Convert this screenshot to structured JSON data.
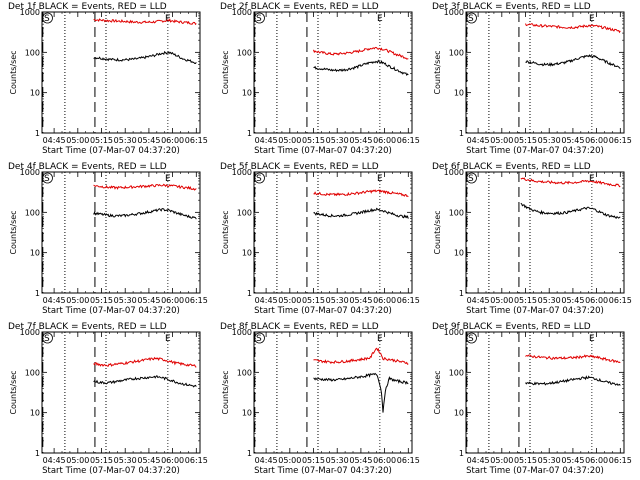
{
  "figure": {
    "title": ""
  },
  "chart_data": [
    {
      "type": "line",
      "title": "Det 1f BLACK = Events, RED = LLD",
      "xlabel": "Start Time (07-Mar-07 04:37:20)",
      "ylabel": "Counts/sec",
      "yscale": "log",
      "ylim": [
        1,
        1000
      ],
      "yticks": [
        "1",
        "10",
        "100",
        "1000"
      ],
      "xticks": [
        "04:45",
        "05:00",
        "05:15",
        "05:30",
        "05:45",
        "06:00",
        "06:15"
      ],
      "markers": [
        "S",
        "E"
      ],
      "series": [
        {
          "name": "LLD",
          "color": "#e00000",
          "x_start": "05:10",
          "x_end": "06:15",
          "values": [
            650,
            630,
            610,
            600,
            590,
            580,
            560,
            560,
            560,
            570,
            600,
            620,
            580,
            560,
            540,
            520
          ]
        },
        {
          "name": "Events",
          "color": "#000000",
          "x_start": "05:10",
          "x_end": "06:15",
          "values": [
            75,
            72,
            68,
            66,
            65,
            66,
            68,
            72,
            78,
            85,
            95,
            100,
            85,
            70,
            62,
            55
          ]
        }
      ]
    },
    {
      "type": "line",
      "title": "Det 2f BLACK = Events, RED = LLD",
      "xlabel": "Start Time (07-Mar-07 04:37:20)",
      "ylabel": "Counts/sec",
      "yscale": "log",
      "ylim": [
        1,
        1000
      ],
      "yticks": [
        "1",
        "10",
        "100",
        "1000"
      ],
      "xticks": [
        "04:45",
        "05:00",
        "05:15",
        "05:30",
        "05:45",
        "06:00",
        "06:15"
      ],
      "markers": [
        "S",
        "E"
      ],
      "series": [
        {
          "name": "LLD",
          "color": "#e00000",
          "x_start": "05:15",
          "x_end": "06:15",
          "values": [
            110,
            100,
            95,
            90,
            92,
            95,
            100,
            105,
            115,
            125,
            130,
            120,
            105,
            90,
            80,
            70
          ]
        },
        {
          "name": "Events",
          "color": "#000000",
          "x_start": "05:15",
          "x_end": "06:15",
          "values": [
            42,
            40,
            38,
            36,
            36,
            37,
            40,
            44,
            50,
            56,
            60,
            55,
            45,
            38,
            32,
            27
          ]
        }
      ]
    },
    {
      "type": "line",
      "title": "Det 3f BLACK = Events, RED = LLD",
      "xlabel": "Start Time (07-Mar-07 04:37:20)",
      "ylabel": "Counts/sec",
      "yscale": "log",
      "ylim": [
        1,
        1000
      ],
      "yticks": [
        "1",
        "10",
        "100",
        "1000"
      ],
      "xticks": [
        "04:45",
        "05:00",
        "05:15",
        "05:30",
        "05:45",
        "06:00",
        "06:15"
      ],
      "markers": [
        "S",
        "E"
      ],
      "series": [
        {
          "name": "LLD",
          "color": "#e00000",
          "x_start": "05:15",
          "x_end": "06:15",
          "values": [
            500,
            480,
            460,
            450,
            440,
            430,
            420,
            415,
            420,
            440,
            460,
            450,
            420,
            390,
            360,
            330
          ]
        },
        {
          "name": "Events",
          "color": "#000000",
          "x_start": "05:15",
          "x_end": "06:15",
          "values": [
            60,
            56,
            52,
            50,
            50,
            52,
            55,
            60,
            68,
            76,
            82,
            78,
            66,
            56,
            48,
            42
          ]
        }
      ]
    },
    {
      "type": "line",
      "title": "Det 4f BLACK = Events, RED = LLD",
      "xlabel": "Start Time (07-Mar-07 04:37:20)",
      "ylabel": "Counts/sec",
      "yscale": "log",
      "ylim": [
        1,
        1000
      ],
      "yticks": [
        "1",
        "10",
        "100",
        "1000"
      ],
      "xticks": [
        "04:45",
        "05:00",
        "05:15",
        "05:30",
        "05:45",
        "06:00",
        "06:15"
      ],
      "markers": [
        "S",
        "E"
      ],
      "series": [
        {
          "name": "LLD",
          "color": "#e00000",
          "x_start": "05:10",
          "x_end": "06:15",
          "values": [
            460,
            440,
            420,
            410,
            410,
            420,
            430,
            440,
            450,
            460,
            470,
            460,
            440,
            420,
            400,
            380
          ]
        },
        {
          "name": "Events",
          "color": "#000000",
          "x_start": "05:10",
          "x_end": "06:15",
          "values": [
            95,
            90,
            85,
            82,
            82,
            85,
            90,
            95,
            102,
            110,
            118,
            112,
            98,
            86,
            78,
            72
          ]
        }
      ]
    },
    {
      "type": "line",
      "title": "Det 5f BLACK = Events, RED = LLD",
      "xlabel": "Start Time (07-Mar-07 04:37:20)",
      "ylabel": "Counts/sec",
      "yscale": "log",
      "ylim": [
        1,
        1000
      ],
      "yticks": [
        "1",
        "10",
        "100",
        "1000"
      ],
      "xticks": [
        "04:45",
        "05:00",
        "05:15",
        "05:30",
        "05:45",
        "06:00",
        "06:15"
      ],
      "markers": [
        "S",
        "E"
      ],
      "series": [
        {
          "name": "LLD",
          "color": "#e00000",
          "x_start": "05:15",
          "x_end": "06:15",
          "values": [
            300,
            290,
            280,
            275,
            275,
            280,
            290,
            300,
            315,
            330,
            340,
            330,
            310,
            290,
            275,
            260
          ]
        },
        {
          "name": "Events",
          "color": "#000000",
          "x_start": "05:15",
          "x_end": "06:15",
          "values": [
            95,
            90,
            85,
            82,
            82,
            85,
            90,
            96,
            104,
            112,
            118,
            110,
            96,
            86,
            80,
            75
          ]
        }
      ]
    },
    {
      "type": "line",
      "title": "Det 6f BLACK = Events, RED = LLD",
      "xlabel": "Start Time (07-Mar-07 04:37:20)",
      "ylabel": "Counts/sec",
      "yscale": "log",
      "ylim": [
        1,
        1000
      ],
      "yticks": [
        "1",
        "10",
        "100",
        "1000"
      ],
      "xticks": [
        "04:45",
        "05:00",
        "05:15",
        "05:30",
        "05:45",
        "06:00",
        "06:15"
      ],
      "markers": [
        "S",
        "E"
      ],
      "series": [
        {
          "name": "LLD",
          "color": "#e00000",
          "x_start": "05:12",
          "x_end": "06:15",
          "values": [
            700,
            650,
            600,
            580,
            560,
            550,
            540,
            540,
            550,
            570,
            600,
            580,
            540,
            510,
            480,
            460
          ]
        },
        {
          "name": "Events",
          "color": "#000000",
          "x_start": "05:12",
          "x_end": "06:15",
          "values": [
            165,
            130,
            110,
            100,
            96,
            95,
            96,
            100,
            108,
            118,
            128,
            120,
            100,
            85,
            78,
            72
          ]
        }
      ]
    },
    {
      "type": "line",
      "title": "Det 7f BLACK = Events, RED = LLD",
      "xlabel": "Start Time (07-Mar-07 04:37:20)",
      "ylabel": "Counts/sec",
      "yscale": "log",
      "ylim": [
        1,
        1000
      ],
      "yticks": [
        "1",
        "10",
        "100",
        "1000"
      ],
      "xticks": [
        "04:45",
        "05:00",
        "05:15",
        "05:30",
        "05:45",
        "06:00",
        "06:15"
      ],
      "markers": [
        "S",
        "E"
      ],
      "series": [
        {
          "name": "LLD",
          "color": "#e00000",
          "x_start": "05:10",
          "x_end": "06:15",
          "values": [
            165,
            155,
            150,
            158,
            165,
            175,
            185,
            195,
            210,
            220,
            210,
            190,
            170,
            160,
            150,
            145
          ]
        },
        {
          "name": "Events",
          "color": "#000000",
          "x_start": "05:10",
          "x_end": "06:15",
          "values": [
            60,
            56,
            55,
            58,
            62,
            66,
            70,
            72,
            75,
            78,
            74,
            66,
            58,
            52,
            48,
            45
          ]
        }
      ]
    },
    {
      "type": "line",
      "title": "Det 8f BLACK = Events, RED = LLD",
      "xlabel": "Start Time (07-Mar-07 04:37:20)",
      "ylabel": "Counts/sec",
      "yscale": "log",
      "ylim": [
        1,
        1000
      ],
      "yticks": [
        "1",
        "10",
        "100",
        "1000"
      ],
      "xticks": [
        "04:45",
        "05:00",
        "05:15",
        "05:30",
        "05:45",
        "06:00",
        "06:15"
      ],
      "markers": [
        "S",
        "E"
      ],
      "series": [
        {
          "name": "LLD",
          "color": "#e00000",
          "x_start": "05:15",
          "x_end": "06:15",
          "values": [
            200,
            190,
            185,
            180,
            182,
            188,
            195,
            205,
            215,
            230,
            400,
            220,
            210,
            195,
            180,
            170
          ]
        },
        {
          "name": "Events",
          "color": "#000000",
          "x_start": "05:15",
          "x_end": "06:15",
          "values": [
            70,
            68,
            66,
            65,
            66,
            68,
            72,
            76,
            80,
            86,
            90,
            10,
            70,
            62,
            58,
            55
          ]
        }
      ]
    },
    {
      "type": "line",
      "title": "Det 9f BLACK = Events, RED = LLD",
      "xlabel": "Start Time (07-Mar-07 04:37:20)",
      "ylabel": "Counts/sec",
      "yscale": "log",
      "ylim": [
        1,
        1000
      ],
      "yticks": [
        "1",
        "10",
        "100",
        "1000"
      ],
      "xticks": [
        "04:45",
        "05:00",
        "05:15",
        "05:30",
        "05:45",
        "06:00",
        "06:15"
      ],
      "markers": [
        "S",
        "E"
      ],
      "series": [
        {
          "name": "LLD",
          "color": "#e00000",
          "x_start": "05:15",
          "x_end": "06:15",
          "values": [
            260,
            250,
            240,
            232,
            228,
            225,
            225,
            228,
            235,
            245,
            250,
            240,
            222,
            205,
            190,
            180
          ]
        },
        {
          "name": "Events",
          "color": "#000000",
          "x_start": "05:15",
          "x_end": "06:15",
          "values": [
            55,
            53,
            52,
            52,
            54,
            57,
            60,
            64,
            68,
            72,
            75,
            70,
            62,
            56,
            52,
            50
          ]
        }
      ]
    }
  ]
}
